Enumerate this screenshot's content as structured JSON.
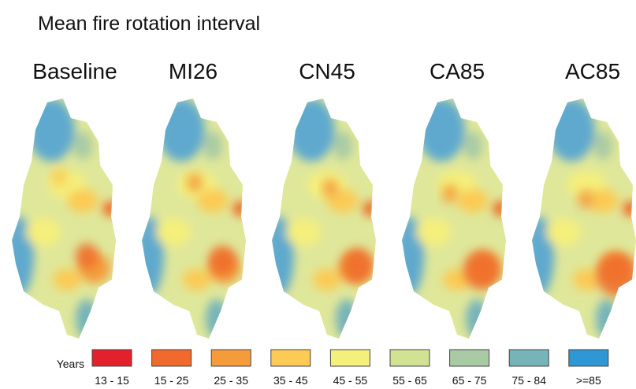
{
  "title": "Mean fire rotation interval",
  "panels": [
    "Baseline",
    "MI26",
    "CN45",
    "CA85",
    "AC85"
  ],
  "legend": {
    "title": "Years",
    "items": [
      {
        "label": "13 - 15",
        "color": "#e3202b"
      },
      {
        "label": "15 - 25",
        "color": "#ef6a2c"
      },
      {
        "label": "25 - 35",
        "color": "#f49c3c"
      },
      {
        "label": "35 - 45",
        "color": "#fbcb55"
      },
      {
        "label": "45 - 55",
        "color": "#f5ef7c"
      },
      {
        "label": "55 - 65",
        "color": "#d2e295"
      },
      {
        "label": "65 - 75",
        "color": "#a9cba4"
      },
      {
        "label": "75 - 84",
        "color": "#76b4ba"
      },
      {
        "label": ">=85",
        "color": "#2f97d3"
      }
    ]
  }
}
